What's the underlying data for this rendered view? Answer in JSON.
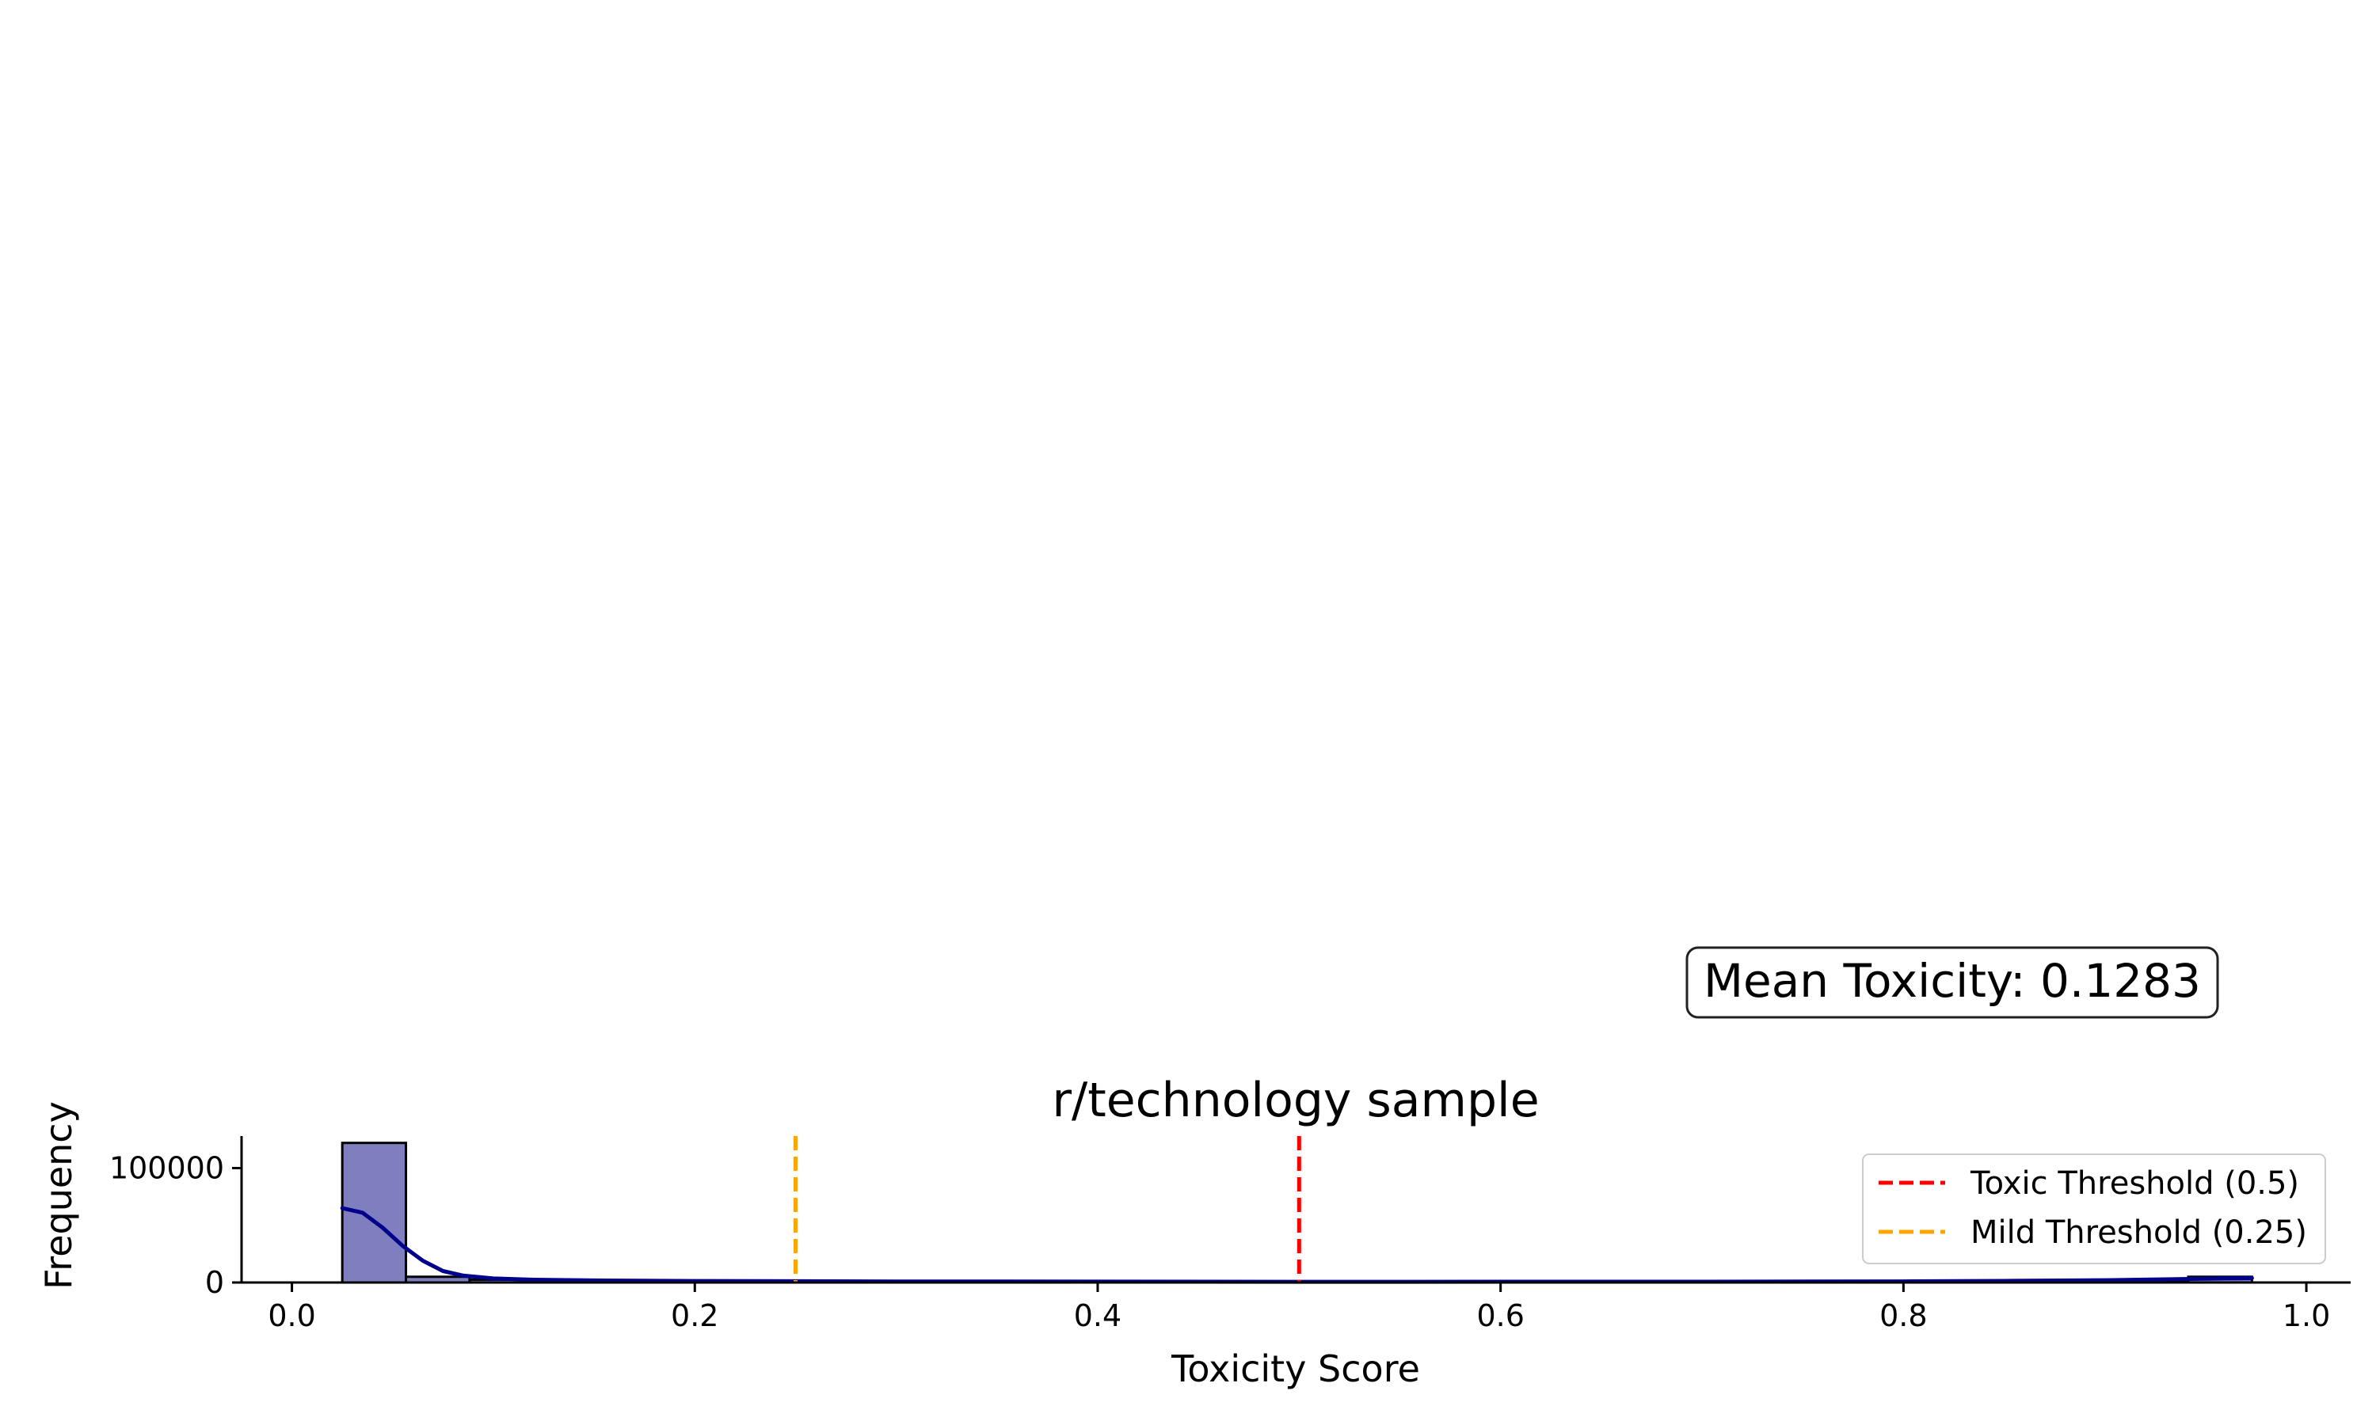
{
  "chart_data": {
    "type": "histogram",
    "title": "r/technology sample",
    "xlabel": "Toxicity Score",
    "ylabel": "Frequency",
    "xlim": [
      -0.025,
      1.022
    ],
    "ylim": [
      0,
      128000
    ],
    "x_ticks": [
      0.0,
      0.2,
      0.4,
      0.6,
      0.8,
      1.0
    ],
    "x_tick_labels": [
      "0.0",
      "0.2",
      "0.4",
      "0.6",
      "0.8",
      "1.0"
    ],
    "y_ticks": [
      0,
      100000
    ],
    "y_tick_labels": [
      "0",
      "100000"
    ],
    "bin_edges": [
      0.025,
      0.0566,
      0.0882,
      0.1198,
      0.1514,
      0.183,
      0.2146,
      0.2462,
      0.2778,
      0.3094,
      0.341,
      0.3726,
      0.4042,
      0.4358,
      0.4674,
      0.499,
      0.5306,
      0.5622,
      0.5938,
      0.6254,
      0.657,
      0.6886,
      0.7202,
      0.7518,
      0.7834,
      0.815,
      0.8466,
      0.8782,
      0.9098,
      0.9414,
      0.973
    ],
    "counts": [
      122000,
      5000,
      2500,
      2000,
      1500,
      1200,
      1000,
      900,
      800,
      700,
      650,
      600,
      550,
      500,
      480,
      460,
      440,
      420,
      410,
      400,
      400,
      420,
      450,
      500,
      600,
      700,
      900,
      1300,
      2000,
      5000
    ],
    "bar_color": "#7f7fbf",
    "bar_edge_color": "#000000",
    "kde": {
      "color": "#00008b",
      "x": [
        0.025,
        0.035,
        0.045,
        0.055,
        0.065,
        0.075,
        0.085,
        0.1,
        0.12,
        0.15,
        0.2,
        0.3,
        0.5,
        0.7,
        0.8,
        0.85,
        0.9,
        0.93,
        0.96,
        0.973
      ],
      "y": [
        65000,
        61000,
        48000,
        32000,
        19000,
        10000,
        6000,
        3500,
        2400,
        1800,
        1300,
        900,
        600,
        700,
        1000,
        1400,
        2000,
        2800,
        3600,
        3800
      ]
    },
    "threshold_lines": [
      {
        "x": 0.5,
        "color": "#ff0000",
        "label": "Toxic Threshold (0.5)"
      },
      {
        "x": 0.25,
        "color": "#ffa500",
        "label": "Mild Threshold (0.25)"
      }
    ],
    "annotation": "Mean Toxicity: 0.1283",
    "legend_placement": "right",
    "grid": false
  }
}
